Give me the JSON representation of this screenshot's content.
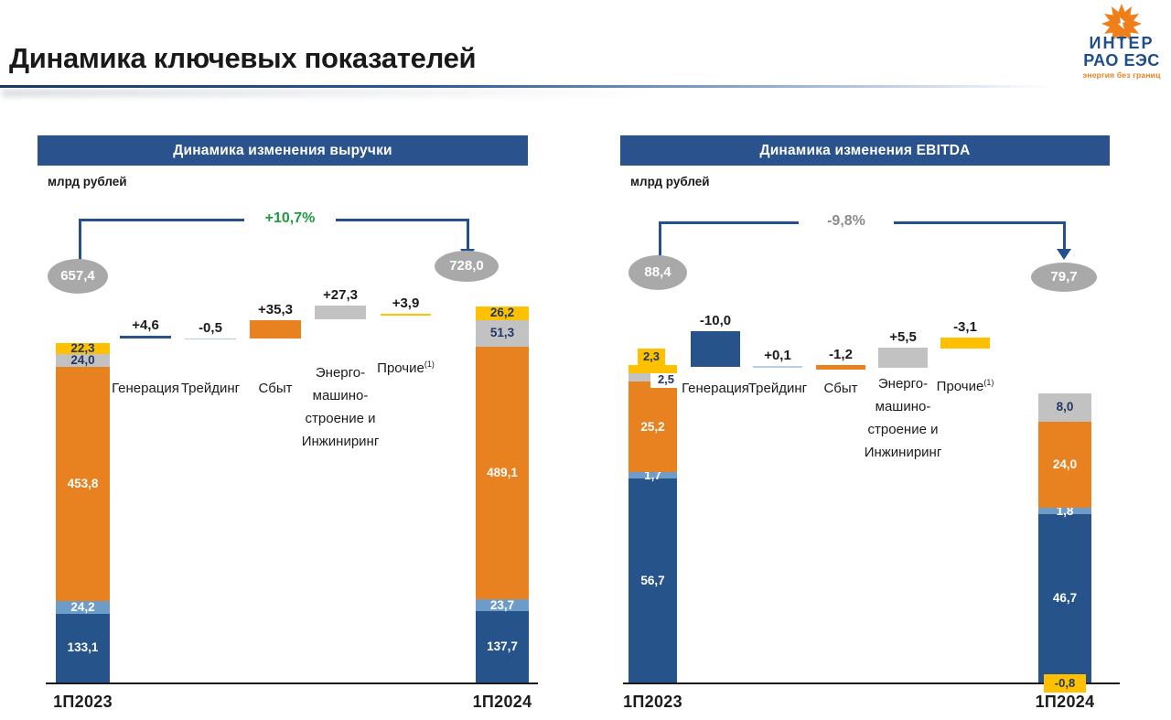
{
  "slide": {
    "title": "Динамика ключевых показателей",
    "logo": {
      "name_line1": "ИНТЕР",
      "name_line2": "РАО ЕЭС",
      "tagline": "энергия без границ",
      "sun_color": "#EF7F1A",
      "text_color": "#1F4E8C"
    }
  },
  "palette": {
    "navy": "#26538A",
    "lightblue": "#6D9CC9",
    "lightblue_soft": "#B7CDE6",
    "orange": "#E8811F",
    "gray": "#C2C2C2",
    "yellow": "#FFC000",
    "banner": "#2A528C",
    "ellipse": "#A9A9A9",
    "green": "#1F9B3F",
    "pct_gray": "#8C8C8C",
    "arrow": "#24508C",
    "dark_text": "#1b1b1b",
    "segment_dark_label": "#1F3864"
  },
  "chart_data": [
    {
      "type": "waterfall",
      "title": "Динамика изменения выручки",
      "units": "млрд рублей",
      "overall_change": {
        "label": "+10,7%",
        "direction": "up",
        "color_key": "green"
      },
      "start_total": {
        "label": "657,4",
        "value": 657.4
      },
      "end_total": {
        "label": "728,0",
        "value": 728.0
      },
      "start_column": {
        "axis_label": "1П2023",
        "segments": [
          {
            "name": "Генерация",
            "value": 133.1,
            "label": "133,1",
            "color_key": "navy",
            "label_style": "light"
          },
          {
            "name": "Трейдинг",
            "value": 24.2,
            "label": "24,2",
            "color_key": "lightblue",
            "label_style": "light"
          },
          {
            "name": "Сбыт",
            "value": 453.8,
            "label": "453,8",
            "color_key": "orange",
            "label_style": "light"
          },
          {
            "name": "Энергомашиностроение и Инжиниринг",
            "value": 24.0,
            "label": "24,0",
            "color_key": "gray",
            "label_style": "dark"
          },
          {
            "name": "Прочие",
            "value": 22.3,
            "label": "22,3",
            "color_key": "yellow",
            "label_style": "dark"
          }
        ]
      },
      "changes": [
        {
          "category_lines": [
            "Генерация"
          ],
          "value": 4.6,
          "label": "+4,6",
          "color_key": "navy"
        },
        {
          "category_lines": [
            "Трейдинг"
          ],
          "value": -0.5,
          "label": "-0,5",
          "color_key": "lightblue"
        },
        {
          "category_lines": [
            "Сбыт"
          ],
          "value": 35.3,
          "label": "+35,3",
          "color_key": "orange"
        },
        {
          "category_lines": [
            "Энерго-",
            "машино-",
            "строение и",
            "Инжиниринг"
          ],
          "value": 27.3,
          "label": "+27,3",
          "color_key": "gray"
        },
        {
          "category_lines": [
            "Прочие"
          ],
          "category_sup": "(1)",
          "value": 3.9,
          "label": "+3,9",
          "color_key": "yellow"
        }
      ],
      "end_column": {
        "axis_label": "1П2024",
        "segments": [
          {
            "name": "Генерация",
            "value": 137.7,
            "label": "137,7",
            "color_key": "navy",
            "label_style": "light"
          },
          {
            "name": "Трейдинг",
            "value": 23.7,
            "label": "23,7",
            "color_key": "lightblue",
            "label_style": "light"
          },
          {
            "name": "Сбыт",
            "value": 489.1,
            "label": "489,1",
            "color_key": "orange",
            "label_style": "light"
          },
          {
            "name": "Энергомашиностроение и Инжиниринг",
            "value": 51.3,
            "label": "51,3",
            "color_key": "gray",
            "label_style": "dark"
          },
          {
            "name": "Прочие",
            "value": 26.2,
            "label": "26,2",
            "color_key": "yellow",
            "label_style": "dark"
          }
        ]
      }
    },
    {
      "type": "waterfall",
      "title": "Динамика изменения EBITDA",
      "units": "млрд рублей",
      "overall_change": {
        "label": "-9,8%",
        "direction": "down",
        "color_key": "pct_gray"
      },
      "start_total": {
        "label": "88,4",
        "value": 88.4
      },
      "end_total": {
        "label": "79,7",
        "value": 79.7
      },
      "start_column": {
        "axis_label": "1П2023",
        "segments": [
          {
            "name": "Генерация",
            "value": 56.7,
            "label": "56,7",
            "color_key": "navy",
            "label_style": "light"
          },
          {
            "name": "Трейдинг",
            "value": 1.7,
            "label": "1,7",
            "color_key": "lightblue",
            "label_style": "light"
          },
          {
            "name": "Сбыт",
            "value": 25.2,
            "label": "25,2",
            "color_key": "orange",
            "label_style": "light"
          },
          {
            "name": "Энергомашиностроение и Инжиниринг",
            "value": 2.5,
            "label": "2,5",
            "color_key": "gray",
            "label_style": "dark"
          },
          {
            "name": "Прочие",
            "value": 2.3,
            "label": "2,3",
            "color_key": "yellow",
            "label_style": "dark"
          }
        ]
      },
      "changes": [
        {
          "category_lines": [
            "Генерация"
          ],
          "value": -10.0,
          "label": "-10,0",
          "color_key": "navy"
        },
        {
          "category_lines": [
            "Трейдинг"
          ],
          "value": 0.1,
          "label": "+0,1",
          "color_key": "lightblue"
        },
        {
          "category_lines": [
            "Сбыт"
          ],
          "value": -1.2,
          "label": "-1,2",
          "color_key": "orange"
        },
        {
          "category_lines": [
            "Энерго-",
            "машино-",
            "строение и",
            "Инжиниринг"
          ],
          "value": 5.5,
          "label": "+5,5",
          "color_key": "gray"
        },
        {
          "category_lines": [
            "Прочие"
          ],
          "category_sup": "(1)",
          "value": -3.1,
          "label": "-3,1",
          "color_key": "yellow"
        }
      ],
      "end_column": {
        "axis_label": "1П2024",
        "segments": [
          {
            "name": "Генерация",
            "value": 46.7,
            "label": "46,7",
            "color_key": "navy",
            "label_style": "light"
          },
          {
            "name": "Трейдинг",
            "value": 1.8,
            "label": "1,8",
            "color_key": "lightblue",
            "label_style": "light"
          },
          {
            "name": "Сбыт",
            "value": 24.0,
            "label": "24,0",
            "color_key": "orange",
            "label_style": "light"
          },
          {
            "name": "Энергомашиностроение и Инжиниринг",
            "value": 8.0,
            "label": "8,0",
            "color_key": "gray",
            "label_style": "dark"
          },
          {
            "name": "Прочие",
            "value": -0.8,
            "label": "-0,8",
            "color_key": "yellow",
            "label_style": "dark"
          }
        ]
      }
    }
  ]
}
